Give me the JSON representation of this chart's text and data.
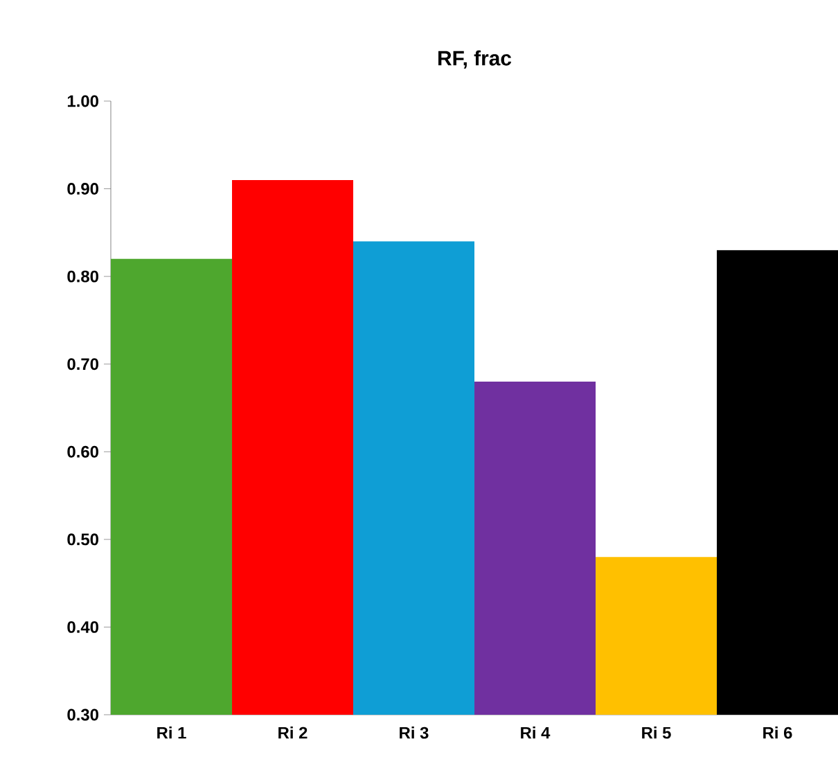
{
  "chart_data": {
    "type": "bar",
    "title": "RF, frac",
    "categories": [
      "Ri 1",
      "Ri 2",
      "Ri 3",
      "Ri 4",
      "Ri 5",
      "Ri 6"
    ],
    "values": [
      0.82,
      0.91,
      0.84,
      0.68,
      0.48,
      0.83
    ],
    "colors": [
      "#4ea72e",
      "#ff0000",
      "#0f9ed5",
      "#7030a0",
      "#ffc000",
      "#000000"
    ],
    "ylim": [
      0.3,
      1.0
    ],
    "yticks": [
      {
        "value": 0.3,
        "label": "0.30"
      },
      {
        "value": 0.4,
        "label": "0.40"
      },
      {
        "value": 0.5,
        "label": "0.50"
      },
      {
        "value": 0.6,
        "label": "0.60"
      },
      {
        "value": 0.7,
        "label": "0.70"
      },
      {
        "value": 0.8,
        "label": "0.80"
      },
      {
        "value": 0.9,
        "label": "0.90"
      },
      {
        "value": 1.0,
        "label": "1.00"
      }
    ]
  }
}
